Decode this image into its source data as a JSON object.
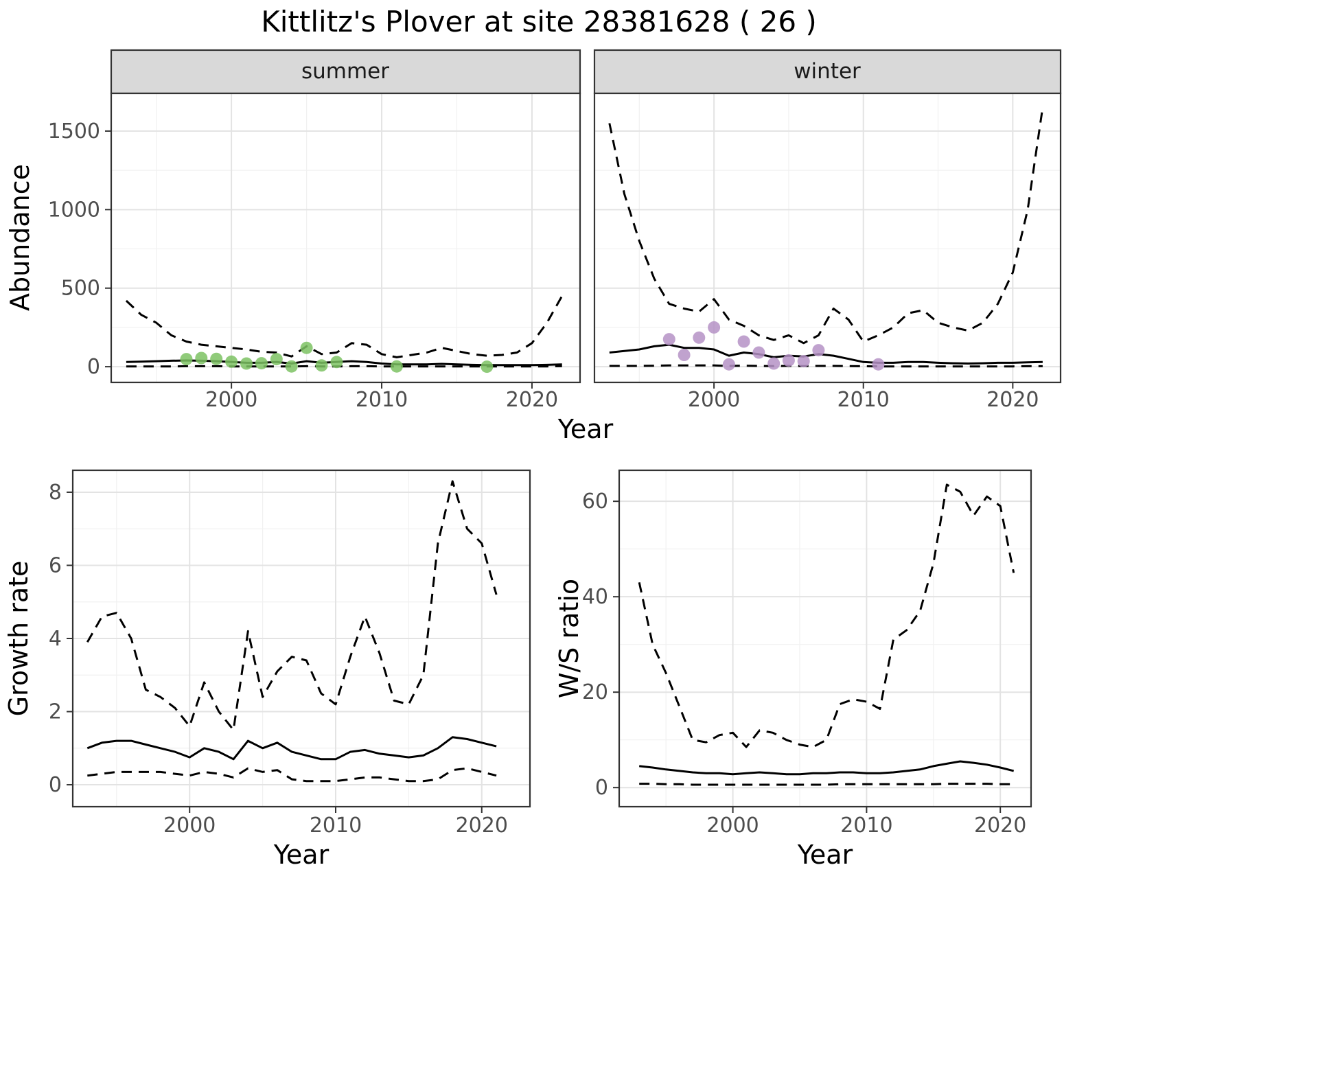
{
  "title": "Kittlitz's Plover at site 28381628 ( 26 )",
  "style": {
    "grid_major": "#e3e3e3",
    "grid_minor": "#f1f1f1",
    "strip_fill": "#d9d9d9",
    "panel_border": "#333333",
    "line_color": "#000000",
    "tick_color": "#333333"
  },
  "chart_data": [
    {
      "id": "abundance",
      "type": "line",
      "xlabel": "Year",
      "ylabel": "Abundance",
      "xticks": [
        2000,
        2010,
        2020
      ],
      "yticks": [
        0,
        500,
        1000,
        1500
      ],
      "xlim": [
        1992,
        2023.2
      ],
      "ylim": [
        -100,
        1740
      ],
      "grid": true,
      "x": [
        1993,
        1994,
        1995,
        1996,
        1997,
        1998,
        1999,
        2000,
        2001,
        2002,
        2003,
        2004,
        2005,
        2006,
        2007,
        2008,
        2009,
        2010,
        2011,
        2012,
        2013,
        2014,
        2015,
        2016,
        2017,
        2018,
        2019,
        2020,
        2021,
        2022
      ],
      "facets": [
        {
          "label": "summer",
          "point_color": "#7dc263",
          "series": [
            {
              "name": "upper-ci",
              "style": "dashed",
              "y": [
                420,
                330,
                280,
                200,
                160,
                140,
                130,
                120,
                110,
                95,
                90,
                65,
                130,
                80,
                90,
                150,
                140,
                80,
                60,
                75,
                90,
                120,
                100,
                80,
                70,
                75,
                90,
                150,
                280,
                450
              ]
            },
            {
              "name": "median",
              "style": "solid",
              "y": [
                30,
                32,
                35,
                38,
                40,
                38,
                35,
                30,
                25,
                25,
                30,
                20,
                35,
                25,
                30,
                35,
                30,
                20,
                15,
                15,
                15,
                18,
                15,
                12,
                10,
                10,
                10,
                10,
                12,
                15
              ]
            },
            {
              "name": "lower-ci",
              "style": "dashed",
              "y": [
                2,
                2,
                2,
                2,
                3,
                3,
                3,
                2,
                2,
                2,
                2,
                2,
                3,
                2,
                2,
                3,
                3,
                2,
                2,
                2,
                2,
                2,
                2,
                2,
                2,
                2,
                2,
                2,
                2,
                3
              ]
            }
          ],
          "points": {
            "x": [
              1997,
              1998,
              1999,
              2000,
              2001,
              2002,
              2003,
              2004,
              2005,
              2006,
              2007,
              2011,
              2017
            ],
            "y": [
              48,
              55,
              50,
              32,
              20,
              22,
              48,
              2,
              120,
              8,
              30,
              2,
              0
            ]
          }
        },
        {
          "label": "winter",
          "point_color": "#b592c6",
          "series": [
            {
              "name": "upper-ci",
              "style": "dashed",
              "y": [
                1550,
                1100,
                800,
                560,
                400,
                370,
                350,
                430,
                300,
                260,
                200,
                170,
                200,
                150,
                200,
                370,
                300,
                160,
                200,
                250,
                340,
                360,
                280,
                250,
                230,
                280,
                400,
                600,
                1000,
                1650
              ]
            },
            {
              "name": "median",
              "style": "solid",
              "y": [
                90,
                100,
                110,
                130,
                140,
                120,
                120,
                110,
                70,
                90,
                80,
                60,
                70,
                65,
                80,
                70,
                50,
                30,
                25,
                25,
                30,
                30,
                25,
                22,
                20,
                22,
                25,
                25,
                28,
                30
              ]
            },
            {
              "name": "lower-ci",
              "style": "dashed",
              "y": [
                5,
                5,
                5,
                6,
                8,
                8,
                8,
                8,
                5,
                6,
                5,
                4,
                5,
                4,
                5,
                5,
                4,
                3,
                2,
                2,
                2,
                2,
                2,
                2,
                2,
                2,
                2,
                2,
                3,
                3
              ]
            }
          ],
          "points": {
            "x": [
              1997,
              1998,
              1999,
              2000,
              2001,
              2002,
              2003,
              2004,
              2005,
              2006,
              2007,
              2011
            ],
            "y": [
              175,
              75,
              185,
              250,
              15,
              160,
              90,
              20,
              40,
              35,
              105,
              15
            ]
          }
        }
      ]
    },
    {
      "id": "growth-rate",
      "type": "line",
      "xlabel": "Year",
      "ylabel": "Growth rate",
      "xticks": [
        2000,
        2010,
        2020
      ],
      "yticks": [
        0,
        2,
        4,
        6,
        8
      ],
      "xlim": [
        1992,
        2023.3
      ],
      "ylim": [
        -0.6,
        8.6
      ],
      "grid": true,
      "x": [
        1993,
        1994,
        1995,
        1996,
        1997,
        1998,
        1999,
        2000,
        2001,
        2002,
        2003,
        2004,
        2005,
        2006,
        2007,
        2008,
        2009,
        2010,
        2011,
        2012,
        2013,
        2014,
        2015,
        2016,
        2017,
        2018,
        2019,
        2020,
        2021
      ],
      "series": [
        {
          "name": "upper-ci",
          "style": "dashed",
          "y": [
            3.9,
            4.6,
            4.7,
            4.0,
            2.6,
            2.4,
            2.1,
            1.6,
            2.8,
            2.0,
            1.5,
            4.2,
            2.4,
            3.1,
            3.5,
            3.4,
            2.5,
            2.2,
            3.5,
            4.6,
            3.6,
            2.3,
            2.2,
            3.0,
            6.6,
            8.3,
            7.0,
            6.6,
            5.2
          ]
        },
        {
          "name": "median",
          "style": "solid",
          "y": [
            1.0,
            1.15,
            1.2,
            1.2,
            1.1,
            1.0,
            0.9,
            0.75,
            1.0,
            0.9,
            0.7,
            1.2,
            1.0,
            1.15,
            0.9,
            0.8,
            0.7,
            0.7,
            0.9,
            0.95,
            0.85,
            0.8,
            0.75,
            0.8,
            1.0,
            1.3,
            1.25,
            1.15,
            1.05
          ]
        },
        {
          "name": "lower-ci",
          "style": "dashed",
          "y": [
            0.25,
            0.3,
            0.35,
            0.35,
            0.35,
            0.35,
            0.3,
            0.25,
            0.35,
            0.3,
            0.2,
            0.45,
            0.35,
            0.4,
            0.15,
            0.1,
            0.1,
            0.1,
            0.15,
            0.2,
            0.2,
            0.15,
            0.1,
            0.1,
            0.15,
            0.4,
            0.45,
            0.35,
            0.25
          ]
        }
      ]
    },
    {
      "id": "ws-ratio",
      "type": "line",
      "xlabel": "Year",
      "ylabel": "W/S ratio",
      "xticks": [
        2000,
        2010,
        2020
      ],
      "yticks": [
        0,
        20,
        40,
        60
      ],
      "xlim": [
        1991.5,
        2022.3
      ],
      "ylim": [
        -4,
        66.5
      ],
      "grid": true,
      "x": [
        1993,
        1994,
        1995,
        1996,
        1997,
        1998,
        1999,
        2000,
        2001,
        2002,
        2003,
        2004,
        2005,
        2006,
        2007,
        2008,
        2009,
        2010,
        2011,
        2012,
        2013,
        2014,
        2015,
        2016,
        2017,
        2018,
        2019,
        2020,
        2021
      ],
      "series": [
        {
          "name": "upper-ci",
          "style": "dashed",
          "y": [
            43,
            30,
            24,
            17,
            10,
            9.5,
            11,
            11.5,
            8.5,
            12,
            11.5,
            10,
            9,
            8.5,
            10,
            17.5,
            18.5,
            18,
            16.5,
            31,
            33,
            37,
            47,
            63.5,
            62,
            57,
            61,
            59,
            45
          ]
        },
        {
          "name": "median",
          "style": "solid",
          "y": [
            4.5,
            4.2,
            3.8,
            3.5,
            3.2,
            3.0,
            3.0,
            2.8,
            3.0,
            3.2,
            3.0,
            2.8,
            2.8,
            3.0,
            3.0,
            3.2,
            3.2,
            3.0,
            3.0,
            3.2,
            3.5,
            3.8,
            4.5,
            5.0,
            5.5,
            5.2,
            4.8,
            4.2,
            3.5
          ]
        },
        {
          "name": "lower-ci",
          "style": "dashed",
          "y": [
            0.8,
            0.8,
            0.7,
            0.7,
            0.6,
            0.6,
            0.6,
            0.6,
            0.6,
            0.6,
            0.6,
            0.6,
            0.6,
            0.6,
            0.6,
            0.7,
            0.7,
            0.7,
            0.7,
            0.7,
            0.7,
            0.7,
            0.7,
            0.8,
            0.8,
            0.8,
            0.8,
            0.7,
            0.7
          ]
        }
      ]
    }
  ]
}
